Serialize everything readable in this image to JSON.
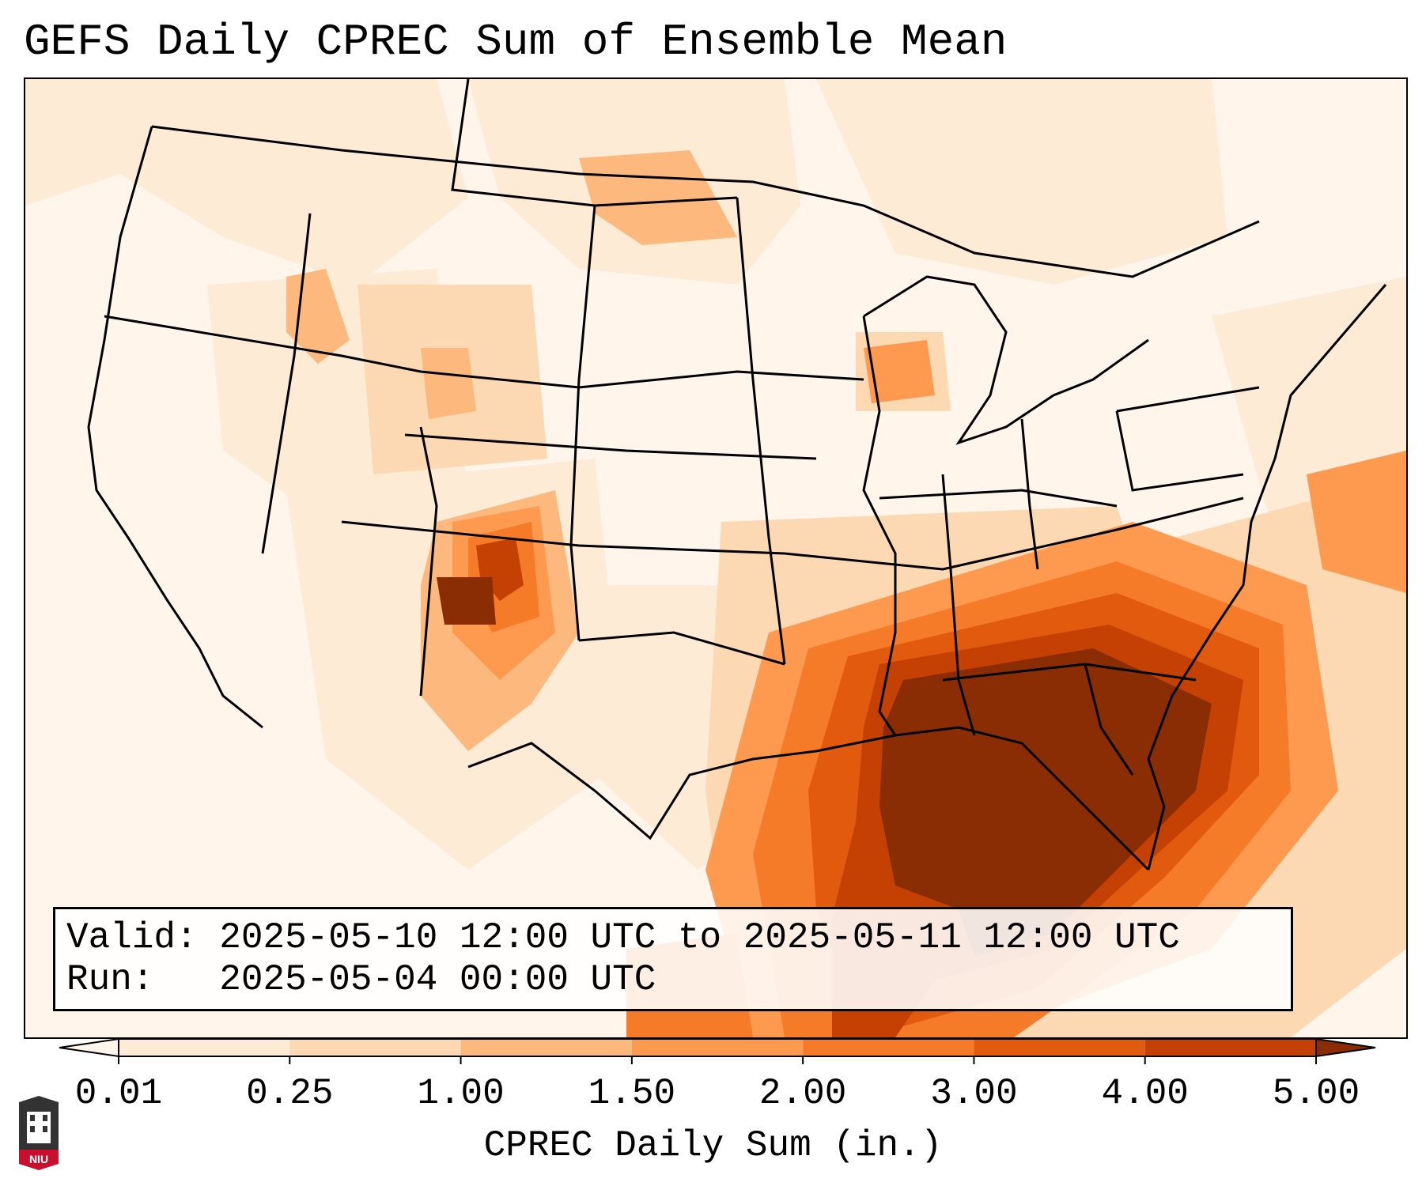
{
  "title": "GEFS Daily CPREC Sum of Ensemble Mean",
  "info": {
    "valid_label": "Valid:",
    "valid_value": "2025-05-10 12:00 UTC to 2025-05-11 12:00 UTC",
    "run_label": "Run:",
    "run_value": "2025-05-04 00:00 UTC"
  },
  "colorbar": {
    "label": "CPREC Daily Sum (in.)",
    "ticks": [
      "0.01",
      "0.25",
      "1.00",
      "1.50",
      "2.00",
      "3.00",
      "4.00",
      "5.00"
    ],
    "colors": [
      "#fdebd6",
      "#fdd9b3",
      "#fdb97d",
      "#fd9a4f",
      "#f57b28",
      "#e25a0e",
      "#c44103"
    ],
    "under_color": "#fff5eb",
    "over_color": "#8b2d04",
    "extend": "both"
  },
  "map": {
    "projection": "Lambert conformal, CONUS",
    "variable": "CPREC daily sum",
    "units": "in.",
    "max_precip_region": "Southeast US / Gulf of Mexico",
    "secondary_max_region": "Colorado / New Mexico"
  },
  "logo": {
    "text": "NIU",
    "colors": {
      "tower": "#333333",
      "badge": "#c8102e"
    }
  }
}
